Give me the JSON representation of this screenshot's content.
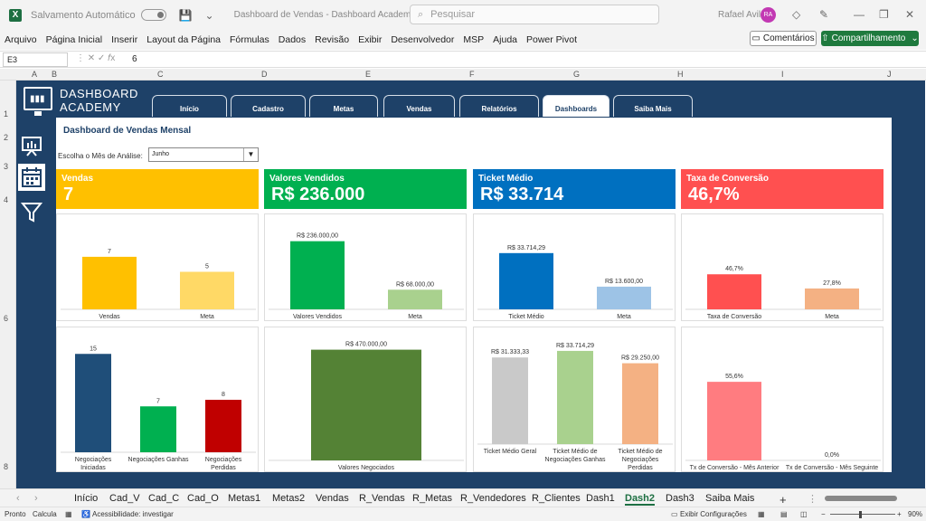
{
  "titlebar": {
    "autosave_label": "Salvamento Automático",
    "toggle_state": "Desligado",
    "doc_title": "Dashboard de Vendas - Dashboard Academy.xlsx • Salvo",
    "search_placeholder": "Pesquisar",
    "user_name": "Rafael Avila",
    "user_initials": "RA"
  },
  "ribbon": {
    "items": [
      "Arquivo",
      "Página Inicial",
      "Inserir",
      "Layout da Página",
      "Fórmulas",
      "Dados",
      "Revisão",
      "Exibir",
      "Desenvolvedor",
      "MSP",
      "Ajuda",
      "Power Pivot"
    ],
    "comments_label": "Comentários",
    "share_label": "Compartilhamento"
  },
  "formula": {
    "cell_ref": "E3",
    "value": "6"
  },
  "columns": [
    "A",
    "B",
    "C",
    "D",
    "E",
    "F",
    "G",
    "H",
    "I",
    "J"
  ],
  "rows": [
    "1",
    "2",
    "3",
    "4",
    "6",
    "8"
  ],
  "dashboard": {
    "brand_line1": "DASHBOARD",
    "brand_line2": "ACADEMY",
    "tabs": [
      "Início",
      "Cadastro",
      "Metas",
      "Vendas",
      "Relatórios",
      "Dashboards",
      "Saiba Mais"
    ],
    "active_tab": "Dashboards",
    "sidebar_icons": [
      "presentation-chart-icon",
      "calendar-icon",
      "filter-icon"
    ],
    "title": "Dashboard de Vendas Mensal",
    "month_label": "Escolha o Mês de Análise:",
    "month_value": "Junho",
    "kpis": [
      {
        "label": "Vendas",
        "value": "7",
        "color": "#FFC000"
      },
      {
        "label": "Valores Vendidos",
        "value": "R$ 236.000",
        "color": "#00B050"
      },
      {
        "label": "Ticket Médio",
        "value": "R$ 33.714",
        "color": "#0070C0"
      },
      {
        "label": "Taxa de Conversão",
        "value": "46,7%",
        "color": "#FF5050"
      }
    ]
  },
  "chart_data": [
    {
      "type": "bar",
      "categories": [
        "Vendas",
        "Meta"
      ],
      "values": [
        7,
        5
      ],
      "labels": [
        "7",
        "5"
      ],
      "colors": [
        "#FFC000",
        "#FFD966"
      ],
      "ylim": [
        0,
        10
      ]
    },
    {
      "type": "bar",
      "categories": [
        "Valores Vendidos",
        "Meta"
      ],
      "values": [
        236000,
        68000
      ],
      "labels": [
        "R$ 236.000,00",
        "R$ 68.000,00"
      ],
      "colors": [
        "#00B050",
        "#A9D18E"
      ],
      "ylim": [
        0,
        260000
      ]
    },
    {
      "type": "bar",
      "categories": [
        "Ticket Médio",
        "Meta"
      ],
      "values": [
        33714.29,
        13600
      ],
      "labels": [
        "R$ 33.714,29",
        "R$ 13.600,00"
      ],
      "colors": [
        "#0070C0",
        "#9DC3E6"
      ],
      "ylim": [
        0,
        45000
      ]
    },
    {
      "type": "bar",
      "categories": [
        "Taxa de Conversão",
        "Meta"
      ],
      "values": [
        46.7,
        27.8
      ],
      "labels": [
        "46,7%",
        "27,8%"
      ],
      "colors": [
        "#FF5050",
        "#F4B183"
      ],
      "ylim": [
        0,
        100
      ]
    },
    {
      "type": "bar",
      "categories": [
        "Negociações Iniciadas",
        "Negociações Ganhas",
        "Negociações Perdidas"
      ],
      "values": [
        15,
        7,
        8
      ],
      "labels": [
        "15",
        "7",
        "8"
      ],
      "colors": [
        "#1F4E79",
        "#00B050",
        "#C00000"
      ],
      "ylim": [
        0,
        16
      ]
    },
    {
      "type": "bar",
      "categories": [
        "Valores Negociados"
      ],
      "values": [
        470000
      ],
      "labels": [
        "R$ 470.000,00"
      ],
      "colors": [
        "#548235"
      ],
      "ylim": [
        0,
        480000
      ]
    },
    {
      "type": "bar",
      "categories": [
        "Ticket Médio Geral",
        "Ticket Médio de Negociações Ganhas",
        "Ticket Médio de Negociações Perdidas"
      ],
      "values": [
        31333.33,
        33714.29,
        29250
      ],
      "labels": [
        "R$ 31.333,33",
        "R$ 33.714,29",
        "R$ 29.250,00"
      ],
      "colors": [
        "#C9C9C9",
        "#A9D18E",
        "#F4B183"
      ],
      "ylim": [
        0,
        35000
      ]
    },
    {
      "type": "bar",
      "categories": [
        "Tx de Conversão - Mês Anterior",
        "Tx de Conversão - Mês Seguinte"
      ],
      "values": [
        55.6,
        0
      ],
      "labels": [
        "55,6%",
        "0,0%"
      ],
      "colors": [
        "#FF7C80",
        "#FF7C80"
      ],
      "ylim": [
        0,
        80
      ]
    }
  ],
  "sheet_tabs": [
    "Início",
    "Cad_V",
    "Cad_C",
    "Cad_O",
    "Metas1",
    "Metas2",
    "Vendas",
    "R_Vendas",
    "R_Metas",
    "R_Vendedores",
    "R_Clientes",
    "Dash1",
    "Dash2",
    "Dash3",
    "Saiba Mais"
  ],
  "active_sheet": "Dash2",
  "status": {
    "ready": "Pronto",
    "calc": "Calcula",
    "accessibility": "Acessibilidade: investigar",
    "display_settings": "Exibir Configurações",
    "zoom": "90%"
  }
}
